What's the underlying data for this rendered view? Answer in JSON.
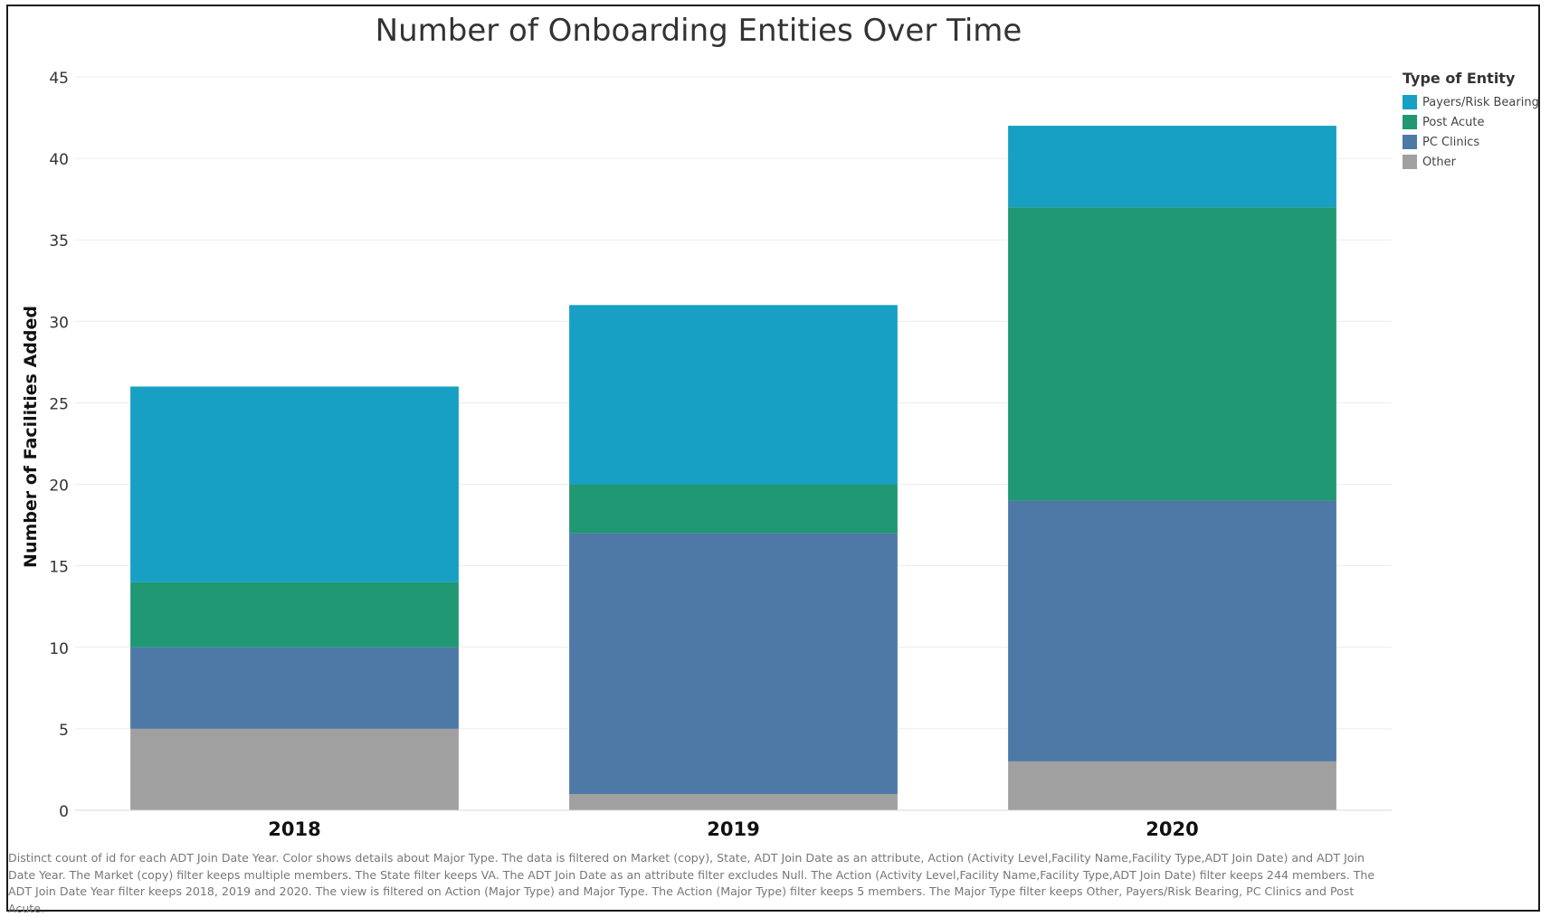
{
  "chart_data": {
    "type": "bar",
    "stacked": true,
    "title": "Number of Onboarding Entities Over Time",
    "xlabel": "",
    "ylabel": "Number of Facilities Added",
    "categories": [
      "2018",
      "2019",
      "2020"
    ],
    "ylim": [
      0,
      45
    ],
    "yticks": [
      "0",
      "5",
      "10",
      "15",
      "20",
      "25",
      "30",
      "35",
      "40",
      "45"
    ],
    "grid": true,
    "legend_title": "Type of Entity",
    "legend_position": "top-right",
    "series": [
      {
        "name": "Other",
        "color": "#a0a0a0",
        "values": [
          5,
          1,
          3
        ]
      },
      {
        "name": "PC Clinics",
        "color": "#4e79a7",
        "values": [
          5,
          16,
          16
        ]
      },
      {
        "name": "Post Acute",
        "color": "#1f9873",
        "values": [
          4,
          3,
          18
        ]
      },
      {
        "name": "Payers/Risk Bearing",
        "color": "#17a0c3",
        "values": [
          12,
          11,
          5
        ]
      }
    ],
    "legend_order": [
      "Payers/Risk Bearing",
      "Post Acute",
      "PC Clinics",
      "Other"
    ]
  },
  "footnote": "Distinct count of id for each ADT Join Date Year.  Color shows details about Major Type. The data is filtered on Market (copy), State, ADT Join Date as an attribute, Action (Activity Level,Facility Name,Facility Type,ADT Join Date) and ADT Join Date Year. The Market (copy) filter keeps multiple members. The State filter keeps VA. The ADT Join Date as an attribute filter excludes Null. The Action (Activity Level,Facility Name,Facility Type,ADT Join Date) filter keeps 244 members. The ADT Join Date Year filter keeps 2018, 2019 and 2020. The view is filtered on Action (Major Type) and Major Type. The Action (Major Type) filter keeps 5 members. The Major Type filter keeps Other, Payers/Risk Bearing, PC Clinics and Post Acute."
}
